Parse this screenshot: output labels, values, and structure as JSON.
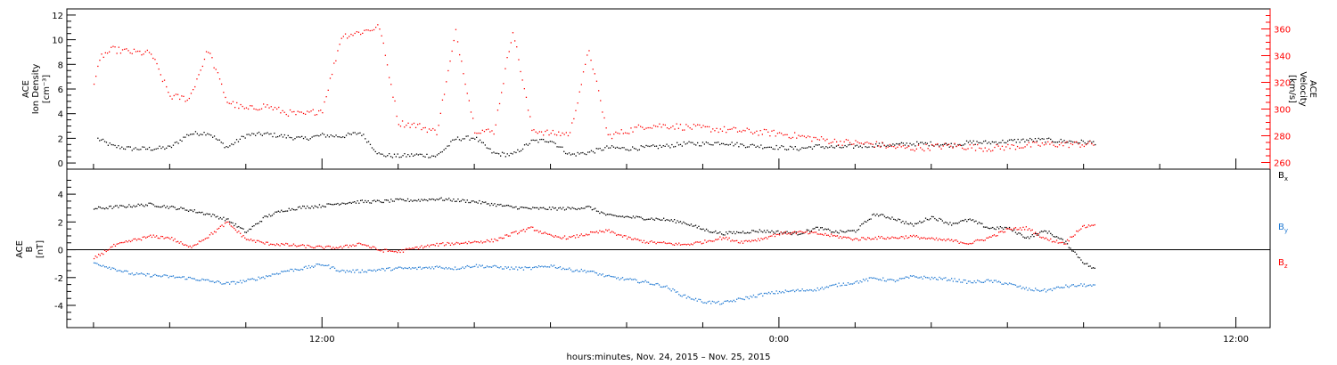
{
  "chart_data": [
    {
      "type": "scatter",
      "panel": "top",
      "ylabel": [
        "ACE",
        "Ion Density",
        "[cm⁻³]"
      ],
      "ylabel_right": [
        "ACE",
        "Velocity",
        "[km/s]"
      ],
      "ylim": [
        -0.5,
        12.5
      ],
      "yticks": [
        0,
        2,
        4,
        6,
        8,
        10,
        12
      ],
      "ylim_right": [
        255,
        375
      ],
      "yticks_right": [
        260,
        280,
        300,
        320,
        340,
        360
      ],
      "series": [
        {
          "axis": "left",
          "color": "#000000",
          "x": [
            6.1,
            6.5,
            7.0,
            7.5,
            8.0,
            8.5,
            9.0,
            9.5,
            10.0,
            10.5,
            11.0,
            11.5,
            12.0,
            12.5,
            13.0,
            13.5,
            14.0,
            14.5,
            15.0,
            15.5,
            16.0,
            16.5,
            17.0,
            17.5,
            18.0,
            18.5,
            19.0,
            19.5,
            20.0,
            20.5,
            21.0,
            21.5,
            22.0,
            22.5,
            23.0,
            23.5,
            24.0,
            24.5,
            25.0,
            25.5,
            26.0,
            26.5,
            27.0,
            27.5,
            28.0,
            28.5,
            29.0,
            29.5,
            30.0,
            30.5,
            31.0,
            31.5,
            32.3
          ],
          "y": [
            2.0,
            1.4,
            1.2,
            1.2,
            1.3,
            2.4,
            2.5,
            1.3,
            2.3,
            2.4,
            2.2,
            2.0,
            2.3,
            2.2,
            2.5,
            0.7,
            0.6,
            0.7,
            0.6,
            2.0,
            2.1,
            0.8,
            0.7,
            1.8,
            1.9,
            0.7,
            0.9,
            1.3,
            1.2,
            1.3,
            1.4,
            1.6,
            1.6,
            1.7,
            1.5,
            1.4,
            1.3,
            1.2,
            1.4,
            1.3,
            1.4,
            1.5,
            1.5,
            1.6,
            1.6,
            1.5,
            1.7,
            1.7,
            1.8,
            1.9,
            1.9,
            1.8,
            1.7
          ]
        },
        {
          "axis": "right",
          "color": "#ff0000",
          "x": [
            6.0,
            6.2,
            6.5,
            7.0,
            7.5,
            8.0,
            8.5,
            9.0,
            9.5,
            10.0,
            10.5,
            11.0,
            11.5,
            12.0,
            12.5,
            13.0,
            13.5,
            14.0,
            14.5,
            15.0,
            15.5,
            16.0,
            16.5,
            17.0,
            17.5,
            18.0,
            18.5,
            19.0,
            19.5,
            20.0,
            20.5,
            21.0,
            21.5,
            22.0,
            22.5,
            23.0,
            23.5,
            24.0,
            24.5,
            25.0,
            25.5,
            26.0,
            26.5,
            27.0,
            27.5,
            28.0,
            28.5,
            29.0,
            29.5,
            30.0,
            30.5,
            31.0,
            31.5,
            32.3
          ],
          "y": [
            320,
            340,
            345,
            343,
            342,
            310,
            308,
            345,
            306,
            300,
            303,
            298,
            296,
            300,
            355,
            358,
            362,
            290,
            288,
            283,
            358,
            285,
            283,
            360,
            285,
            282,
            282,
            345,
            280,
            284,
            288,
            288,
            287,
            286,
            285,
            284,
            283,
            282,
            280,
            278,
            276,
            275,
            274,
            272,
            271,
            272,
            273,
            272,
            271,
            272,
            273,
            274,
            274,
            274
          ]
        }
      ]
    },
    {
      "type": "scatter",
      "panel": "bottom",
      "ylabel": [
        "ACE",
        "B",
        "[nT]"
      ],
      "ylim": [
        -5.6,
        5.8
      ],
      "yticks": [
        -4,
        -2,
        0,
        2,
        4
      ],
      "hline": 0,
      "legend_position": "right",
      "series": [
        {
          "name": "Bx",
          "name_main": "B",
          "name_sub": "x",
          "color": "#000000",
          "x": [
            6.0,
            6.5,
            7.0,
            7.5,
            8.0,
            8.5,
            9.0,
            9.5,
            10.0,
            10.5,
            11.0,
            11.5,
            12.0,
            12.5,
            13.0,
            13.5,
            14.0,
            14.5,
            15.0,
            15.5,
            16.0,
            16.5,
            17.0,
            17.5,
            18.0,
            18.5,
            19.0,
            19.5,
            20.0,
            20.5,
            21.0,
            21.5,
            22.0,
            22.5,
            23.0,
            23.5,
            24.0,
            24.5,
            25.0,
            25.5,
            26.0,
            26.5,
            27.0,
            27.5,
            28.0,
            28.5,
            29.0,
            29.5,
            30.0,
            30.5,
            31.0,
            31.5,
            32.0,
            32.3
          ],
          "y": [
            3.0,
            3.1,
            3.2,
            3.3,
            3.1,
            2.9,
            2.6,
            2.2,
            1.3,
            2.4,
            2.9,
            3.1,
            3.2,
            3.4,
            3.5,
            3.5,
            3.6,
            3.6,
            3.7,
            3.6,
            3.5,
            3.3,
            3.1,
            3.0,
            3.0,
            3.0,
            3.1,
            2.5,
            2.4,
            2.3,
            2.2,
            2.0,
            1.5,
            1.2,
            1.3,
            1.4,
            1.3,
            1.2,
            1.6,
            1.3,
            1.4,
            2.6,
            2.3,
            1.8,
            2.4,
            1.9,
            2.2,
            1.6,
            1.6,
            0.9,
            1.4,
            0.6,
            -0.9,
            -1.4
          ]
        },
        {
          "name": "By",
          "name_main": "B",
          "name_sub": "y",
          "color": "#1e78d2",
          "x": [
            6.0,
            6.5,
            7.0,
            7.5,
            8.0,
            8.5,
            9.0,
            9.5,
            10.0,
            10.5,
            11.0,
            11.5,
            12.0,
            12.5,
            13.0,
            13.5,
            14.0,
            14.5,
            15.0,
            15.5,
            16.0,
            16.5,
            17.0,
            17.5,
            18.0,
            18.5,
            19.0,
            19.5,
            20.0,
            20.5,
            21.0,
            21.5,
            22.0,
            22.5,
            23.0,
            23.5,
            24.0,
            24.5,
            25.0,
            25.5,
            26.0,
            26.5,
            27.0,
            27.5,
            28.0,
            28.5,
            29.0,
            29.5,
            30.0,
            30.5,
            31.0,
            31.5,
            32.0,
            32.3
          ],
          "y": [
            -0.9,
            -1.3,
            -1.7,
            -1.8,
            -1.9,
            -2.0,
            -2.2,
            -2.4,
            -2.2,
            -1.9,
            -1.5,
            -1.3,
            -1.0,
            -1.5,
            -1.5,
            -1.4,
            -1.3,
            -1.3,
            -1.2,
            -1.3,
            -1.1,
            -1.2,
            -1.3,
            -1.3,
            -1.1,
            -1.4,
            -1.5,
            -1.9,
            -2.1,
            -2.3,
            -2.6,
            -3.3,
            -3.7,
            -3.8,
            -3.5,
            -3.2,
            -3.0,
            -2.9,
            -2.8,
            -2.5,
            -2.3,
            -2.0,
            -2.2,
            -1.9,
            -2.0,
            -2.1,
            -2.3,
            -2.2,
            -2.4,
            -2.8,
            -2.9,
            -2.6,
            -2.5,
            -2.6
          ]
        },
        {
          "name": "Bz",
          "name_main": "B",
          "name_sub": "z",
          "color": "#ff0000",
          "x": [
            6.0,
            6.5,
            7.0,
            7.5,
            8.0,
            8.5,
            9.0,
            9.5,
            10.0,
            10.5,
            11.0,
            11.5,
            12.0,
            12.5,
            13.0,
            13.5,
            14.0,
            14.5,
            15.0,
            15.5,
            16.0,
            16.5,
            17.0,
            17.5,
            18.0,
            18.5,
            19.0,
            19.5,
            20.0,
            20.5,
            21.0,
            21.5,
            22.0,
            22.5,
            23.0,
            23.5,
            24.0,
            24.5,
            25.0,
            25.5,
            26.0,
            26.5,
            27.0,
            27.5,
            28.0,
            28.5,
            29.0,
            29.5,
            30.0,
            30.5,
            31.0,
            31.5,
            31.9,
            32.3
          ],
          "y": [
            -0.6,
            0.3,
            0.7,
            1.0,
            0.9,
            0.2,
            1.0,
            2.0,
            0.8,
            0.5,
            0.4,
            0.3,
            0.2,
            0.2,
            0.5,
            0.0,
            -0.1,
            0.2,
            0.4,
            0.5,
            0.6,
            0.7,
            1.2,
            1.6,
            1.0,
            0.9,
            1.2,
            1.4,
            0.9,
            0.6,
            0.5,
            0.4,
            0.6,
            0.9,
            0.6,
            0.8,
            1.2,
            1.3,
            1.2,
            1.0,
            0.8,
            0.9,
            0.9,
            1.0,
            0.8,
            0.7,
            0.5,
            0.9,
            1.5,
            1.6,
            0.8,
            0.5,
            1.6,
            1.9
          ]
        }
      ]
    }
  ],
  "x_axis": {
    "range": [
      5.3,
      36.9
    ],
    "major_ticks": [
      {
        "value": 12,
        "label": "12:00"
      },
      {
        "value": 24,
        "label": "0:00"
      },
      {
        "value": 36,
        "label": "12:00"
      }
    ],
    "minor_ticks": [
      6,
      8,
      10,
      14,
      16,
      18,
      20,
      22,
      26,
      28,
      30,
      32,
      34
    ],
    "xlabel": "hours:minutes, Nov. 24, 2015 – Nov. 25, 2015"
  },
  "colors": {
    "black": "#000000",
    "red": "#ff0000",
    "blue": "#1e78d2"
  }
}
